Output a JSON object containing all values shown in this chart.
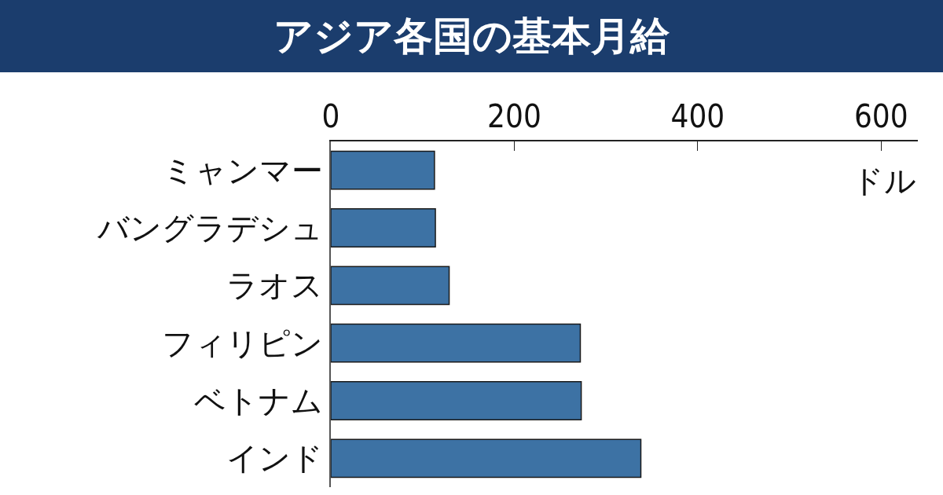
{
  "chart_data": {
    "type": "bar",
    "orientation": "horizontal",
    "title": "アジア各国の基本月給",
    "annotations": [
      "ドル"
    ],
    "categories": [
      "ミャンマー",
      "バングラデシュ",
      "ラオス",
      "フィリピン",
      "ベトナム",
      "インド"
    ],
    "values": [
      113,
      114,
      129,
      272,
      273,
      338
    ],
    "color": "#3d72a4",
    "xlim": [
      0,
      640
    ],
    "xticks": [
      0,
      200,
      400,
      600
    ],
    "grid": false,
    "legend": false
  }
}
